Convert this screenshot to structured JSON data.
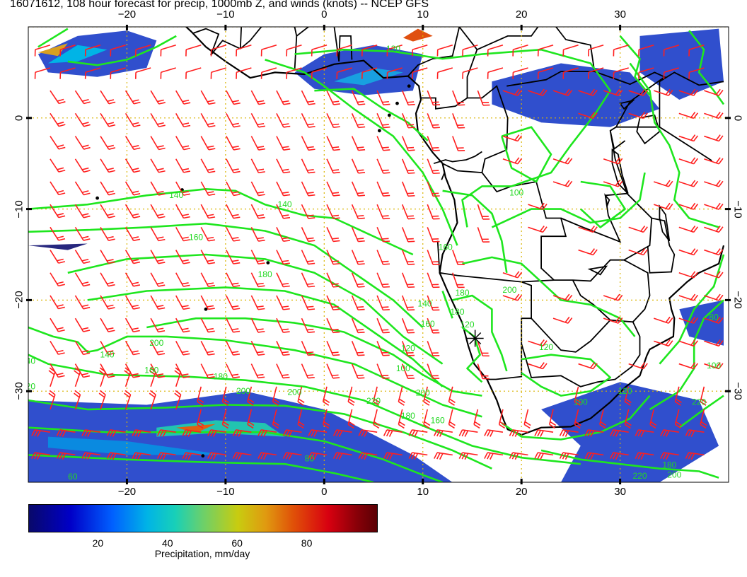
{
  "header": {
    "title": "16071612, 108 hour forecast for precip, 1000mb Z, and winds (knots) -- NCEP GFS"
  },
  "map": {
    "lon_range": [
      -30,
      41
    ],
    "lat_range": [
      -40,
      10
    ],
    "lon_ticks": [
      "−20",
      "−10",
      "0",
      "10",
      "20",
      "30"
    ],
    "lon_tick_values": [
      -20,
      -10,
      0,
      10,
      20,
      30
    ],
    "lat_ticks": [
      "0",
      "−10",
      "−20",
      "−30"
    ],
    "lat_tick_values": [
      0,
      -10,
      -20,
      -30
    ],
    "gridline_color": "#d9b400",
    "contour_color": "#1ee61e",
    "barb_color": "#ff1e1e",
    "coast_color": "#000000",
    "contour_labels": [
      "140",
      "140",
      "160",
      "180",
      "200",
      "200",
      "180",
      "160",
      "140",
      "120",
      "140",
      "160",
      "180",
      "200",
      "220",
      "160",
      "180",
      "200",
      "140",
      "120",
      "80",
      "60",
      "100",
      "160",
      "180",
      "200",
      "120",
      "100",
      "120",
      "80",
      "100",
      "220",
      "180",
      "200",
      "220",
      "120",
      "100",
      "120"
    ],
    "marker": "cross"
  },
  "colorbar": {
    "label": "Precipitation, mm/day",
    "ticks": [
      "20",
      "40",
      "60",
      "80"
    ],
    "tick_values": [
      20,
      40,
      60,
      80
    ],
    "range": [
      0,
      100
    ],
    "colors": [
      "#08086a",
      "#0000c8",
      "#0060ff",
      "#00b4e6",
      "#6cd06a",
      "#c8cc10",
      "#e09a10",
      "#e05008",
      "#d80010",
      "#5a0004"
    ]
  }
}
